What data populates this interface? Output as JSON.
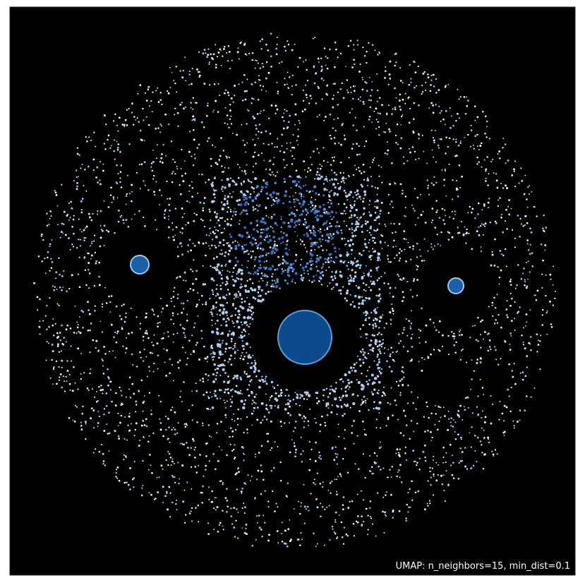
{
  "caption": "UMAP: n_neighbors=15, min_dist=0.1"
}
